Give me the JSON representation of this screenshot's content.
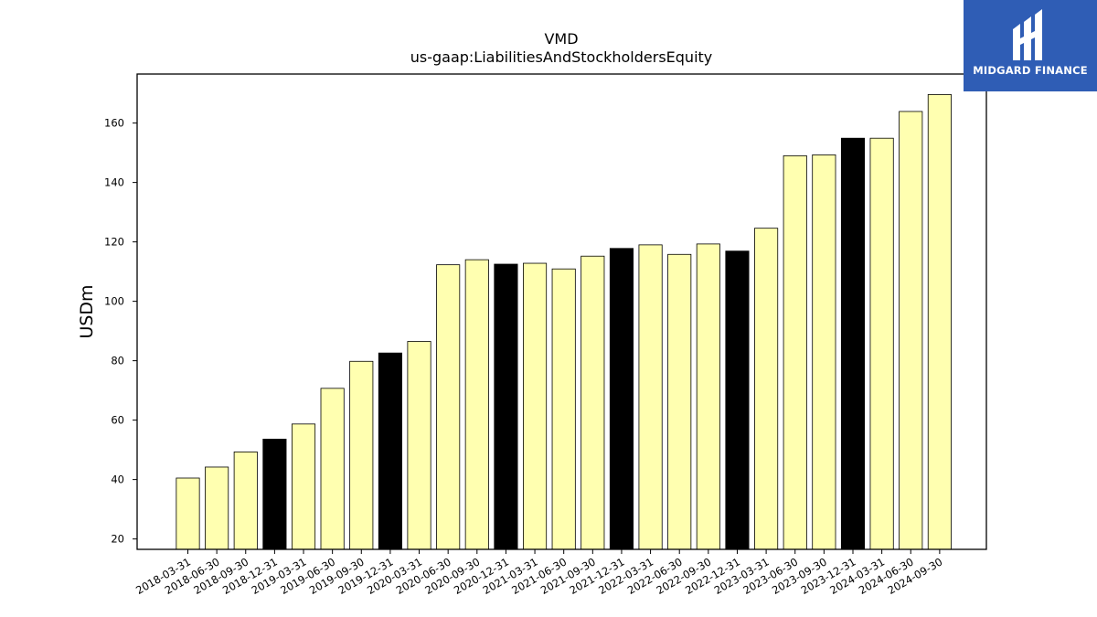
{
  "logo": {
    "text": "MIDGARD FINANCE",
    "icon": "midgard-logo-icon",
    "background": "#2f5db5"
  },
  "chart_data": {
    "type": "bar",
    "title": "VMD",
    "subtitle": "us-gaap:LiabilitiesAndStockholdersEquity",
    "ylabel": "USDm",
    "xlabel": "",
    "ylim": [
      16.5,
      176.5
    ],
    "yticks": [
      20,
      40,
      60,
      80,
      100,
      120,
      140,
      160
    ],
    "grid": false,
    "colors": {
      "regular": "#ffffb0",
      "year_end": "#000000",
      "edge": "#000000"
    },
    "categories": [
      "2018-03-31",
      "2018-06-30",
      "2018-09-30",
      "2018-12-31",
      "2019-03-31",
      "2019-06-30",
      "2019-09-30",
      "2019-12-31",
      "2020-03-31",
      "2020-06-30",
      "2020-09-30",
      "2020-12-31",
      "2021-03-31",
      "2021-06-30",
      "2021-09-30",
      "2021-12-31",
      "2022-03-31",
      "2022-06-30",
      "2022-09-30",
      "2022-12-31",
      "2023-03-31",
      "2023-06-30",
      "2023-09-30",
      "2023-12-31",
      "2024-03-31",
      "2024-06-30",
      "2024-09-30"
    ],
    "values": [
      40.5,
      44.2,
      49.3,
      53.6,
      58.7,
      70.7,
      79.8,
      82.6,
      86.5,
      112.3,
      114.0,
      112.5,
      112.8,
      110.9,
      115.2,
      117.8,
      119.0,
      115.8,
      119.3,
      116.9,
      124.6,
      149.0,
      149.3,
      154.9,
      154.9,
      163.9,
      169.6
    ],
    "highlight": [
      false,
      false,
      false,
      true,
      false,
      false,
      false,
      true,
      false,
      false,
      false,
      true,
      false,
      false,
      false,
      true,
      false,
      false,
      false,
      true,
      false,
      false,
      false,
      true,
      false,
      false,
      false
    ]
  }
}
